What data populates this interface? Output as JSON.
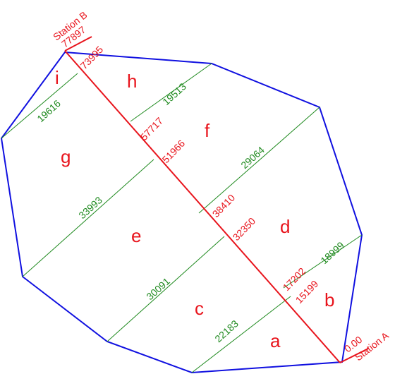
{
  "station_b": {
    "name": "Station B",
    "chainage": "77897"
  },
  "station_a": {
    "name": "Station A",
    "chainage": "0.00"
  },
  "regions": [
    "a",
    "b",
    "c",
    "d",
    "e",
    "f",
    "g",
    "h",
    "i"
  ],
  "baseline_chainages": {
    "c1": "15199",
    "c2": "17202",
    "c3": "32350",
    "c4": "38410",
    "c5": "51966",
    "c6": "57717",
    "c7": "73995"
  },
  "offset_lengths": {
    "o1": "22183",
    "o2": "18999",
    "o3": "30091",
    "o4": "33993",
    "o5": "29064",
    "o6": "19513",
    "o7": "19616"
  },
  "colors": {
    "boundary": "#1010e0",
    "baseline": "#e8141c",
    "offsets": "#1f8a1f",
    "labels_red": "#e8141c",
    "labels_green": "#1f8a1f"
  }
}
